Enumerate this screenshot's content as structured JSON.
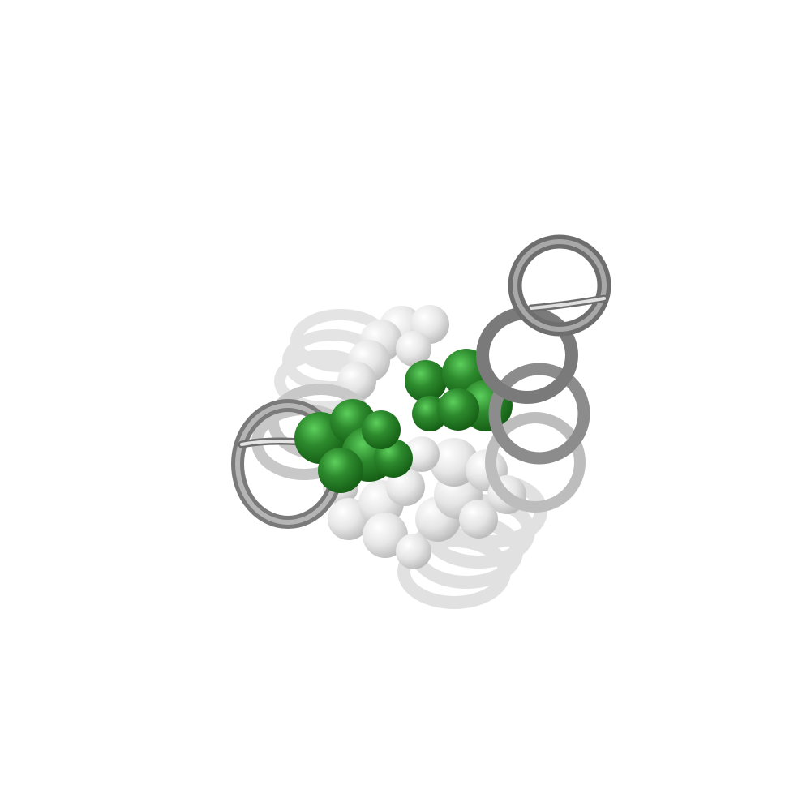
{
  "image": {
    "subject": "protein-helix-bundle-render",
    "background_color": "#ffffff",
    "colors": {
      "helix_dark": "#6e6e6e",
      "helix_mid": "#9a9a9a",
      "helix_light": "#d4d4d4",
      "helix_faint": "#e4e4e4",
      "atom_light": "#e6e6e6",
      "atom_light_shade": "#b9b9b9",
      "atom_green": "#2e8b2e",
      "atom_green_shade": "#155e15",
      "atom_green_highlight": "#5ccf5c"
    }
  }
}
